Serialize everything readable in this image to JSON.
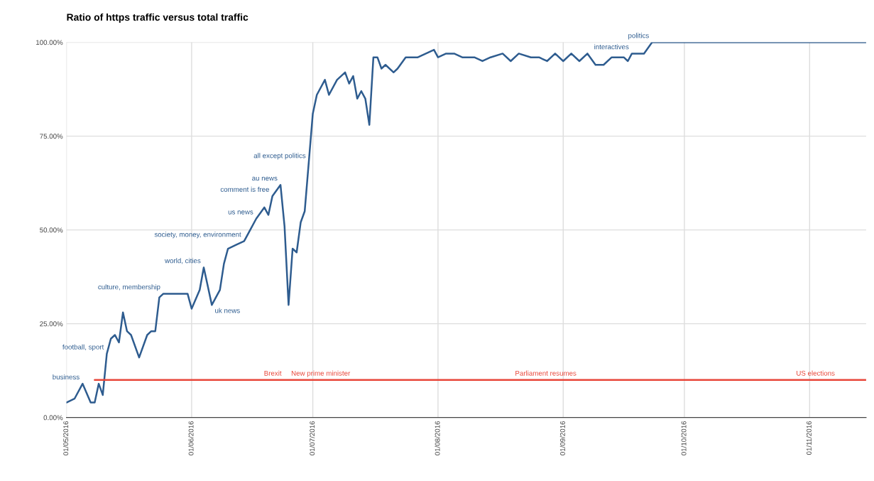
{
  "chart_data": {
    "type": "line",
    "title": "Ratio of https traffic versus total traffic",
    "xlim": [
      "2016-05-01",
      "2016-11-15"
    ],
    "xticks": [
      {
        "value": "2016-05-01",
        "label": "01/05/2016"
      },
      {
        "value": "2016-06-01",
        "label": "01/06/2016"
      },
      {
        "value": "2016-07-01",
        "label": "01/07/2016"
      },
      {
        "value": "2016-08-01",
        "label": "01/08/2016"
      },
      {
        "value": "2016-09-01",
        "label": "01/09/2016"
      },
      {
        "value": "2016-10-01",
        "label": "01/10/2016"
      },
      {
        "value": "2016-11-01",
        "label": "01/11/2016"
      }
    ],
    "ylim": [
      0,
      100
    ],
    "yticks": [
      {
        "value": 0,
        "label": "0.00%"
      },
      {
        "value": 25,
        "label": "25.00%"
      },
      {
        "value": 50,
        "label": "50.00%"
      },
      {
        "value": 75,
        "label": "75.00%"
      },
      {
        "value": 100,
        "label": "100.00%"
      }
    ],
    "grid": true,
    "marker": "none",
    "line_style": "solid",
    "series": [
      {
        "color": "#2e5c8f",
        "x": [
          "2016-05-01",
          "2016-05-03",
          "2016-05-05",
          "2016-05-07",
          "2016-05-08",
          "2016-05-09",
          "2016-05-10",
          "2016-05-11",
          "2016-05-12",
          "2016-05-13",
          "2016-05-14",
          "2016-05-15",
          "2016-05-16",
          "2016-05-17",
          "2016-05-19",
          "2016-05-21",
          "2016-05-22",
          "2016-05-23",
          "2016-05-24",
          "2016-05-25",
          "2016-05-28",
          "2016-05-31",
          "2016-06-01",
          "2016-06-03",
          "2016-06-04",
          "2016-06-05",
          "2016-06-06",
          "2016-06-07",
          "2016-06-08",
          "2016-06-09",
          "2016-06-10",
          "2016-06-12",
          "2016-06-14",
          "2016-06-15",
          "2016-06-17",
          "2016-06-19",
          "2016-06-20",
          "2016-06-21",
          "2016-06-23",
          "2016-06-24",
          "2016-06-25",
          "2016-06-26",
          "2016-06-27",
          "2016-06-28",
          "2016-06-29",
          "2016-06-30",
          "2016-07-01",
          "2016-07-02",
          "2016-07-04",
          "2016-07-05",
          "2016-07-07",
          "2016-07-09",
          "2016-07-10",
          "2016-07-11",
          "2016-07-12",
          "2016-07-13",
          "2016-07-14",
          "2016-07-15",
          "2016-07-16",
          "2016-07-17",
          "2016-07-18",
          "2016-07-19",
          "2016-07-21",
          "2016-07-22",
          "2016-07-24",
          "2016-07-27",
          "2016-07-29",
          "2016-07-31",
          "2016-08-01",
          "2016-08-03",
          "2016-08-05",
          "2016-08-07",
          "2016-08-10",
          "2016-08-12",
          "2016-08-14",
          "2016-08-17",
          "2016-08-19",
          "2016-08-21",
          "2016-08-24",
          "2016-08-26",
          "2016-08-28",
          "2016-08-30",
          "2016-09-01",
          "2016-09-03",
          "2016-09-05",
          "2016-09-07",
          "2016-09-09",
          "2016-09-11",
          "2016-09-13",
          "2016-09-16",
          "2016-09-17",
          "2016-09-18",
          "2016-09-21",
          "2016-09-23",
          "2016-09-24",
          "2016-11-15"
        ],
        "values": [
          4,
          5,
          9,
          4,
          4,
          9,
          6,
          17,
          21,
          22,
          20,
          28,
          23,
          22,
          16,
          22,
          23,
          23,
          32,
          33,
          33,
          33,
          29,
          34,
          40,
          35,
          30,
          32,
          34,
          41,
          45,
          46,
          47,
          49,
          53,
          56,
          54,
          59,
          62,
          51,
          30,
          45,
          44,
          52,
          55,
          68,
          81,
          86,
          90,
          86,
          90,
          92,
          89,
          91,
          85,
          87,
          85,
          78,
          96,
          96,
          93,
          94,
          92,
          93,
          96,
          96,
          97,
          98,
          96,
          97,
          97,
          96,
          96,
          95,
          96,
          97,
          95,
          97,
          96,
          96,
          95,
          97,
          95,
          97,
          95,
          97,
          94,
          94,
          96,
          96,
          95,
          97,
          97,
          100,
          100,
          100
        ]
      },
      {
        "color": "#e8473a",
        "x": [
          "2016-05-08",
          "2016-11-15"
        ],
        "values": [
          10,
          10
        ]
      }
    ],
    "annotations": [
      {
        "text": "business",
        "x": "2016-05-05",
        "y": 9
      },
      {
        "text": "football, sport",
        "x": "2016-05-11",
        "y": 17
      },
      {
        "text": "culture, membership",
        "x": "2016-05-25",
        "y": 33
      },
      {
        "text": "world, cities",
        "x": "2016-06-04",
        "y": 40
      },
      {
        "text": "uk news",
        "x": "2016-06-06",
        "y": 30
      },
      {
        "text": "society, money, environment",
        "x": "2016-06-14",
        "y": 47
      },
      {
        "text": "us news",
        "x": "2016-06-17",
        "y": 53
      },
      {
        "text": "comment is free",
        "x": "2016-06-21",
        "y": 59
      },
      {
        "text": "au news",
        "x": "2016-06-23",
        "y": 62
      },
      {
        "text": "all except politics",
        "x": "2016-06-30",
        "y": 68
      },
      {
        "text": "politics",
        "x": "2016-09-23",
        "y": 100
      },
      {
        "text": "interactives",
        "x": "2016-09-18",
        "y": 97
      },
      {
        "text": "Brexit",
        "x": "2016-06-24",
        "y": 10
      },
      {
        "text": "New prime minister",
        "x": "2016-07-11",
        "y": 10
      },
      {
        "text": "Parliament resumes",
        "x": "2016-09-05",
        "y": 10
      },
      {
        "text": "US elections",
        "x": "2016-11-08",
        "y": 10
      }
    ]
  }
}
